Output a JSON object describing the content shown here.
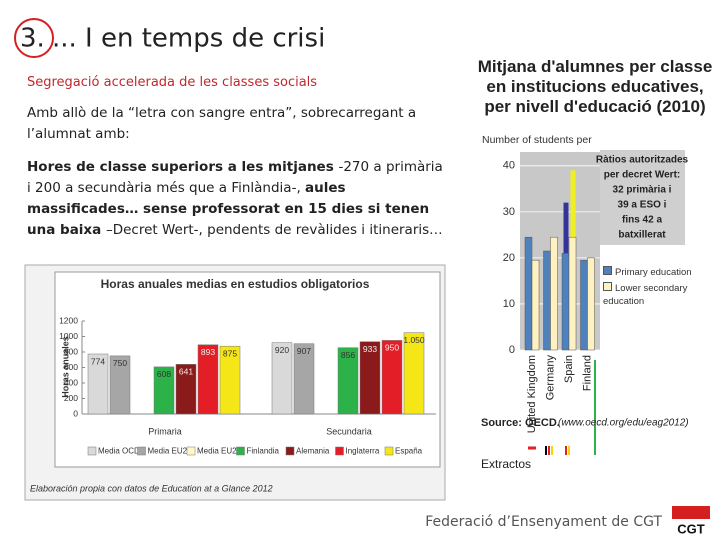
{
  "header": {
    "number": "3.",
    "title": "... I en temps de crisi"
  },
  "subtitle": "Segregació accelerada de les classes socials",
  "body": {
    "intro": "Amb allò de la “letra con sangre entra”, sobrecarregant a l’alumnat amb:",
    "points": [
      {
        "text": "Hores de classe superiors a les mitjanes ",
        "bold": true
      },
      {
        "text": "-270 a primària i 200 a secundària més que a Finlàndia-, ",
        "bold": false
      },
      {
        "text": "aules massificades… sense professorat en 15 dies si tenen una baixa ",
        "bold": true
      },
      {
        "text": "–Decret Wert-, pendents de revàlides i itineraris…",
        "bold": false
      }
    ]
  },
  "chart_data": [
    {
      "type": "bar",
      "title": "Horas anuales medias en estudios obligatorios",
      "y_label": "Horas anuales",
      "categories": [
        "Primaria",
        "Secundaria"
      ],
      "series": [
        {
          "name": "Media OCDE",
          "color": "#d9d9d9",
          "values": [
            774,
            920
          ]
        },
        {
          "name": "Media EU21",
          "color": "#a6a6a6",
          "values": [
            750,
            907
          ]
        },
        {
          "name": "Media EU21",
          "color": "#fff8c8",
          "values": [
            null,
            null
          ]
        },
        {
          "name": "Finlandia",
          "color": "#2db24a",
          "values": [
            608,
            856
          ]
        },
        {
          "name": "Alemania",
          "color": "#8b1a1a",
          "values": [
            641,
            933
          ]
        },
        {
          "name": "Inglaterra",
          "color": "#e41e26",
          "values": [
            893,
            950
          ]
        },
        {
          "name": "España",
          "color": "#f5e617",
          "values": [
            875,
            1050
          ],
          "value_labels": [
            "875",
            "1.050"
          ]
        }
      ],
      "ylim": [
        0,
        1200
      ],
      "yticks": [
        0,
        200,
        400,
        600,
        800,
        1000,
        1200
      ],
      "legend": "bottom",
      "note": "Elaboración propia con datos de Education at a Glance 2012"
    },
    {
      "type": "bar",
      "title": "Mitjana d'alumnes per classe en institucions educatives, per nivell d'educació (2010)",
      "y_label": "Number of students per",
      "categories": [
        "United Kingdom",
        "Germany",
        "Spain",
        "Finland"
      ],
      "series": [
        {
          "name": "Primary education",
          "color": "#4f81bd",
          "values": [
            24.5,
            21.5,
            21,
            19.5
          ]
        },
        {
          "name": "Lower secondary education",
          "color": "#fff2c0",
          "values": [
            19.5,
            24.5,
            24.5,
            20
          ]
        }
      ],
      "ylim": [
        0,
        43
      ],
      "yticks": [
        0,
        10,
        20,
        30,
        40
      ],
      "legend": "right",
      "annotation": [
        "Ràtios autoritzades",
        "per decret Wert:",
        "32 primària i",
        "39 a ESO i",
        "fins 42 a",
        "batxillerat"
      ],
      "ratio_lines": [
        {
          "value": 32,
          "color": "#333399"
        },
        {
          "value": 39,
          "color": "#f0f020"
        }
      ],
      "source": [
        "Source: OECD.",
        "(www.oecd.org/edu/eag2012)",
        "Extractos"
      ]
    }
  ],
  "footer": {
    "text": "Federació d’Ensenyament de CGT",
    "logo": "CGT"
  }
}
